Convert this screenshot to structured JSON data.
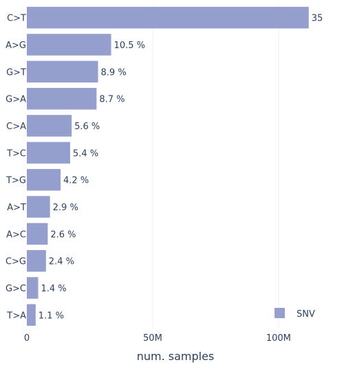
{
  "chart_data": {
    "type": "bar",
    "orientation": "horizontal",
    "categories": [
      "C>T",
      "A>G",
      "G>T",
      "G>A",
      "C>A",
      "T>C",
      "T>G",
      "A>T",
      "A>C",
      "C>G",
      "G>C",
      "T>A"
    ],
    "series": [
      {
        "name": "SNV",
        "values": [
          112000000,
          33500000,
          28300000,
          27700000,
          17800000,
          17200000,
          13400000,
          9200000,
          8300000,
          7600000,
          4500000,
          3500000
        ],
        "labels": [
          "35",
          "10.5 %",
          "8.9 %",
          "8.7 %",
          "5.6 %",
          "5.4 %",
          "4.2 %",
          "2.9 %",
          "2.6 %",
          "2.4 %",
          "1.4 %",
          "1.1 %"
        ],
        "color": "#959fcd"
      }
    ],
    "xlabel": "num. samples",
    "ylabel": "",
    "xlim": [
      0,
      120000000
    ],
    "xticks": [
      {
        "value": 0,
        "label": "0"
      },
      {
        "value": 50000000,
        "label": "50M"
      },
      {
        "value": 100000000,
        "label": "100M"
      }
    ],
    "grid": true,
    "legend": {
      "placement": "bottom-right",
      "label": "SNV"
    },
    "colors": {
      "bar": "#959fcd",
      "text": "#2a3f5f",
      "grid": "#ebf0f8"
    }
  }
}
